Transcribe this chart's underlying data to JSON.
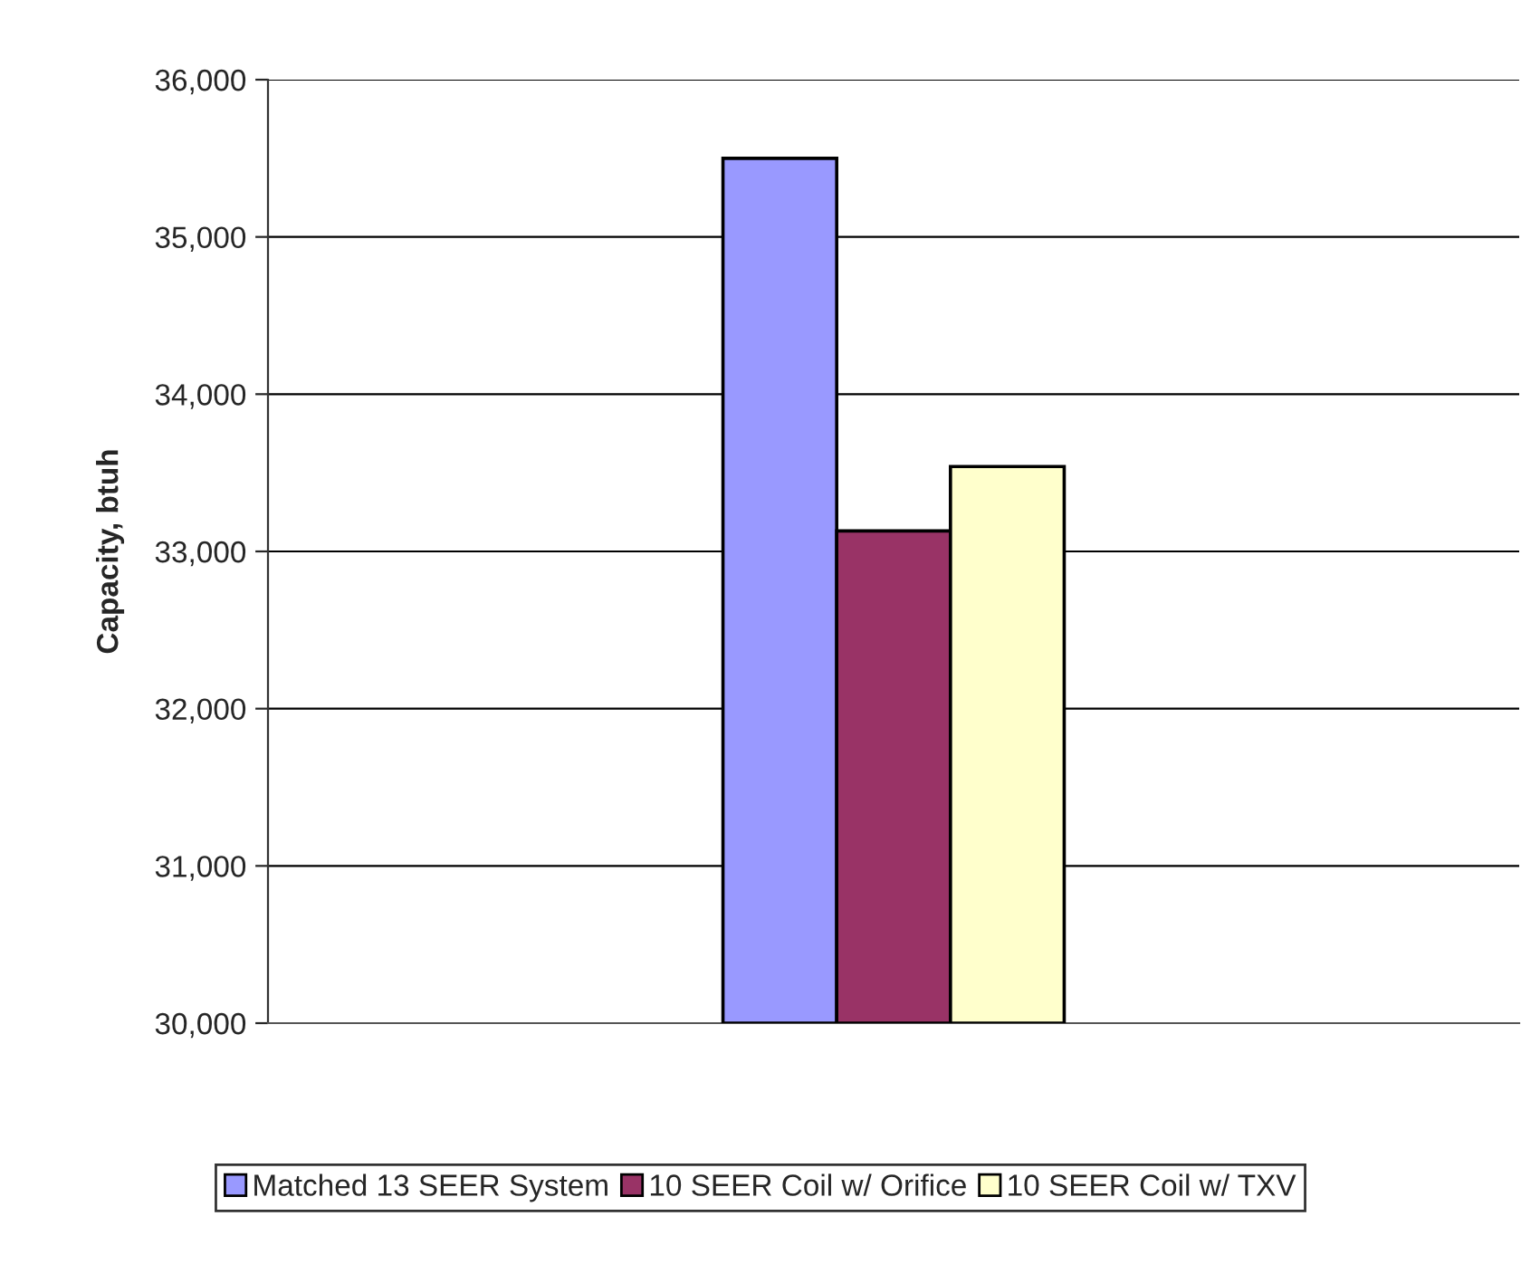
{
  "chart_data": {
    "type": "bar",
    "ylabel": "Capacity, btuh",
    "categories": [
      null
    ],
    "series": [
      {
        "name": "Matched 13 SEER System",
        "color": "#9999ff",
        "values": [
          35500
        ]
      },
      {
        "name": "10 SEER Coil w/ Orifice",
        "color": "#993366",
        "values": [
          33130
        ]
      },
      {
        "name": "10 SEER Coil w/ TXV",
        "color": "#ffffcc",
        "values": [
          33540
        ]
      }
    ],
    "ylim": [
      30000,
      36000
    ],
    "yticks": [
      {
        "value": 30000,
        "label": "30,000"
      },
      {
        "value": 31000,
        "label": "31,000"
      },
      {
        "value": 32000,
        "label": "32,000"
      },
      {
        "value": 33000,
        "label": "33,000"
      },
      {
        "value": 34000,
        "label": "34,000"
      },
      {
        "value": 35000,
        "label": "35,000"
      },
      {
        "value": 36000,
        "label": "36,000"
      }
    ],
    "grid": "y",
    "legend": "bottom"
  }
}
